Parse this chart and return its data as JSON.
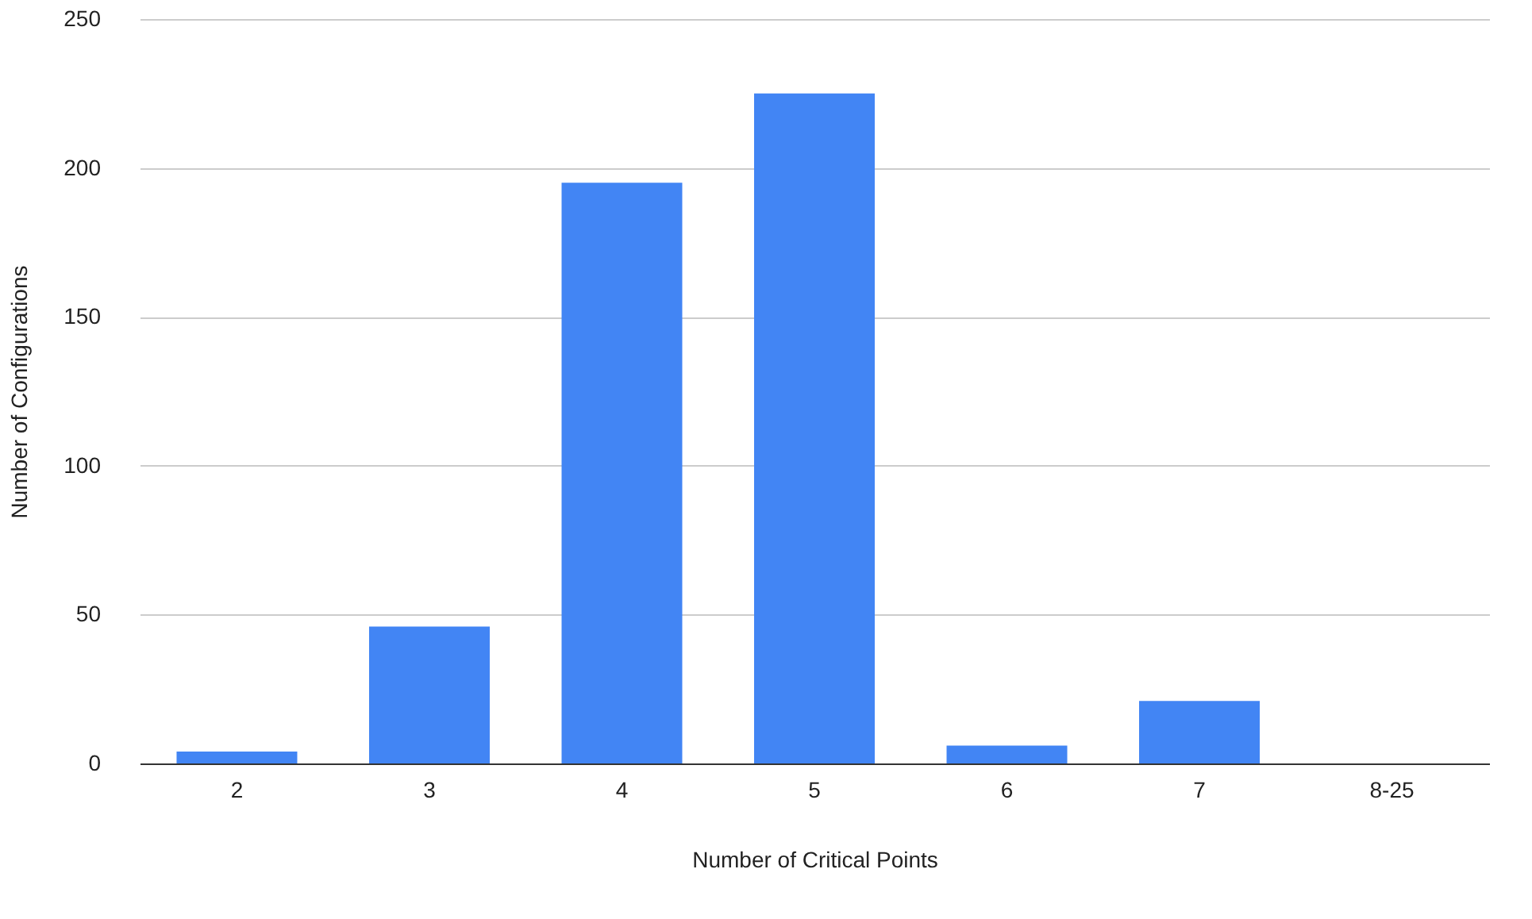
{
  "chart_data": {
    "type": "bar",
    "xlabel": "Number of Critical Points",
    "ylabel": "Number of Configurations",
    "categories": [
      "2",
      "3",
      "4",
      "5",
      "6",
      "7",
      "8-25"
    ],
    "series": [
      {
        "color": "#4285f4",
        "values": [
          4,
          46,
          195,
          225,
          6,
          21,
          0
        ]
      }
    ],
    "ylim": [
      0,
      250
    ],
    "yticks": [
      0,
      50,
      100,
      150,
      200,
      250
    ],
    "grid": "y"
  }
}
